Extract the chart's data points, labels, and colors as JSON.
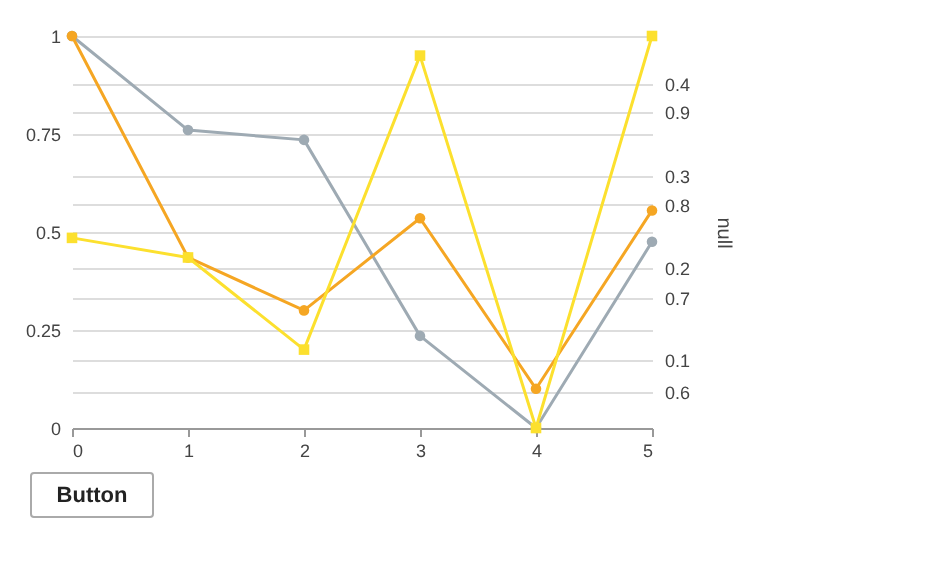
{
  "chart_data": {
    "type": "line",
    "y2label": "null",
    "x": [
      0,
      1,
      2,
      3,
      4,
      5
    ],
    "xlim": [
      0,
      5
    ],
    "xticks": [
      0,
      1,
      2,
      3,
      4,
      5
    ],
    "ylim": [
      0,
      1
    ],
    "yticks": [
      0,
      0.25,
      0.5,
      0.75,
      1
    ],
    "y2lim": [
      0.026,
      0.452
    ],
    "y2ticks": [
      0.1,
      0.2,
      0.3,
      0.4
    ],
    "y3lim": [
      0.561,
      0.981
    ],
    "y3ticks": [
      0.6,
      0.7,
      0.8,
      0.9
    ],
    "grid": "y",
    "series": [
      {
        "color": "#9eaab3",
        "marker": "circle",
        "values": [
          1,
          0.76,
          0.735,
          0.235,
          0,
          0.475
        ]
      },
      {
        "color": "#f5a623",
        "marker": "circle",
        "values": [
          1,
          0.435,
          0.3,
          0.535,
          0.1,
          0.555
        ]
      },
      {
        "color": "#fce02e",
        "marker": "square",
        "values": [
          0.485,
          0.435,
          0.2,
          0.95,
          0,
          1
        ]
      }
    ],
    "annotations": [
      "Button"
    ]
  }
}
